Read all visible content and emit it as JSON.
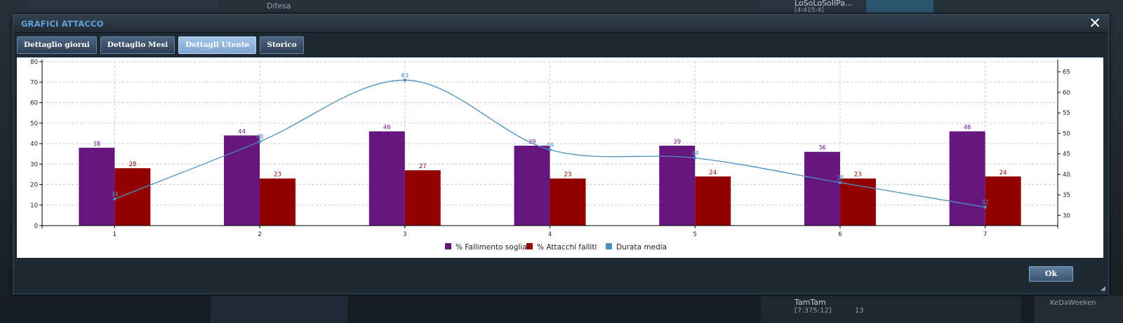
{
  "background": {
    "top_left_label": "Difesa",
    "top_right_user": "LoSoLoSoIlPa...",
    "top_right_sub": "[4:415:4]",
    "bottom_user": "TamTam",
    "bottom_coords": "[7:375:12]",
    "bottom_count": "13",
    "bottom_right_label": "KeDaWeeken"
  },
  "dialog": {
    "title": "GRAFICI ATTACCO",
    "close_label": "✕",
    "tabs": [
      {
        "label": "Dettaglio giorni",
        "active": false
      },
      {
        "label": "Dettaglio Mesi",
        "active": false
      },
      {
        "label": "Dettagli Utente",
        "active": true
      },
      {
        "label": "Storico",
        "active": false
      }
    ],
    "ok_label": "Ok"
  },
  "colors": {
    "bar_series_1": "#66167f",
    "bar_series_2": "#930000",
    "line_series": "#4a90c0",
    "active_tab": "#8fb2dc",
    "title": "#5fa2dc"
  },
  "chart_data": {
    "type": "bar",
    "categories": [
      "1",
      "2",
      "3",
      "4",
      "5",
      "6",
      "7"
    ],
    "series": [
      {
        "name": "% Fallimento soglia",
        "kind": "bar",
        "axis": "left",
        "values": [
          38,
          44,
          46,
          39,
          39,
          36,
          46
        ]
      },
      {
        "name": "% Attacchi falliti",
        "kind": "bar",
        "axis": "left",
        "values": [
          28,
          23,
          27,
          23,
          24,
          23,
          24
        ]
      },
      {
        "name": "Durata media",
        "kind": "line",
        "axis": "right",
        "smooth": true,
        "values": [
          34,
          48,
          63,
          46,
          44,
          38,
          32
        ]
      }
    ],
    "point_labels": [
      "34",
      "48",
      "63",
      "46",
      "44",
      "38",
      "32"
    ],
    "left_axis": {
      "min": 0,
      "max": 80,
      "ticks": [
        "0",
        "10",
        "20",
        "30",
        "40",
        "50",
        "60",
        "70",
        "80"
      ]
    },
    "right_axis": {
      "min": 27.5,
      "max": 67.5,
      "ticks": [
        "30",
        "35",
        "40",
        "45",
        "50",
        "55",
        "60",
        "65"
      ]
    },
    "grid": true,
    "legend_position": "bottom"
  }
}
